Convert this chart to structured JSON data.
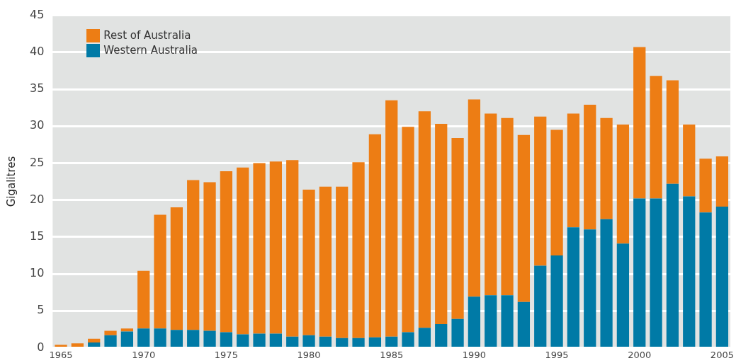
{
  "chart_data": {
    "type": "bar",
    "stacked": true,
    "ylabel": "Gigalitres",
    "categories": [
      "1965",
      null,
      null,
      null,
      null,
      "1970",
      null,
      null,
      null,
      null,
      "1975",
      null,
      null,
      null,
      null,
      "1980",
      null,
      null,
      null,
      null,
      "1985",
      null,
      null,
      null,
      null,
      "1990",
      null,
      null,
      null,
      null,
      "1995",
      null,
      null,
      null,
      null,
      "2000",
      null,
      null,
      null,
      null,
      "2005"
    ],
    "series": [
      {
        "name": "Western Australia",
        "color": "#007aa6",
        "values": [
          0,
          0,
          0.7,
          1.7,
          2.2,
          2.6,
          2.6,
          2.4,
          2.4,
          2.3,
          2.1,
          1.8,
          1.9,
          1.9,
          1.5,
          1.7,
          1.5,
          1.3,
          1.3,
          1.4,
          1.5,
          2.1,
          2.7,
          3.2,
          3.9,
          6.9,
          7.1,
          7.1,
          6.2,
          11.1,
          12.5,
          16.3,
          16.0,
          17.4,
          14.1,
          20.2,
          20.2,
          22.2,
          20.5,
          18.3,
          19.1
        ]
      },
      {
        "name": "Rest of Australia",
        "color": "#ed7d14",
        "values": [
          0.4,
          0.6,
          0.5,
          0.6,
          0.4,
          7.8,
          15.4,
          16.6,
          20.3,
          20.1,
          21.8,
          22.6,
          23.1,
          23.3,
          23.9,
          19.7,
          20.3,
          20.5,
          23.8,
          27.5,
          32.0,
          27.8,
          29.3,
          27.1,
          24.5,
          26.7,
          24.6,
          24.0,
          22.6,
          20.2,
          17.0,
          15.4,
          16.9,
          13.7,
          16.1,
          20.5,
          16.6,
          14.0,
          9.7,
          7.3,
          6.8
        ]
      }
    ],
    "ylim": [
      0,
      45
    ],
    "yticks": [
      0,
      5,
      10,
      15,
      20,
      25,
      30,
      35,
      40,
      45
    ],
    "grid": "y",
    "legend": "top left"
  }
}
